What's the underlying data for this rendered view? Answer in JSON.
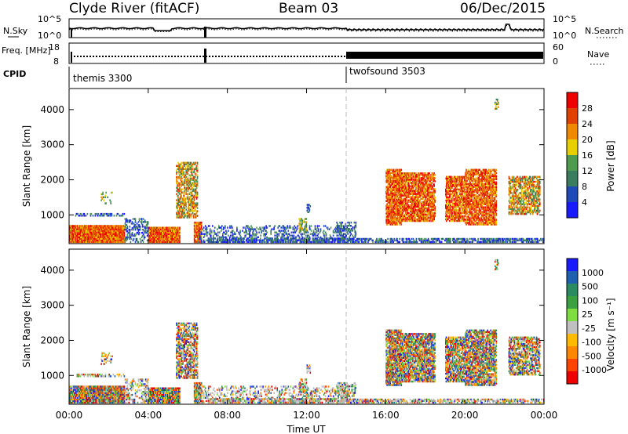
{
  "header": {
    "station": "Clyde River (fitACF)",
    "beam": "Beam 03",
    "date": "06/Dec/2015"
  },
  "colors": {
    "power_scale": [
      "#1a1aff",
      "#1f4bb8",
      "#3a7d5e",
      "#4e9a4e",
      "#e8d000",
      "#f08800",
      "#e04000",
      "#ee0000"
    ],
    "velocity_scale": [
      "#ee0000",
      "#ff4400",
      "#ff8800",
      "#ffbb00",
      "#c0c0c0",
      "#80dd40",
      "#3aa040",
      "#2a8a60",
      "#1f5fb0",
      "#1a1aff"
    ],
    "ground_scatter": "#a0a0a0"
  },
  "chart_data": [
    {
      "type": "line",
      "panel": "noise",
      "left_label": "N.Sky",
      "right_label": "N.Search",
      "left_ticks": [
        "10^5",
        "10^0"
      ],
      "right_ticks": [
        "10^5",
        "10^0"
      ],
      "y_scale": "log",
      "ylim": [
        1,
        100000
      ],
      "x": [
        "00:00",
        "04:00",
        "08:00",
        "12:00",
        "16:00",
        "20:00",
        "00:00"
      ]
    },
    {
      "type": "line",
      "panel": "frequency",
      "left_label": "Freq. [MHz]",
      "right_label": "Nave",
      "left_ticks": [
        "18",
        "8"
      ],
      "right_ticks": [
        "60",
        "0"
      ],
      "ylim": [
        8,
        18
      ],
      "ylim_right": [
        0,
        60
      ]
    },
    {
      "type": "table",
      "panel": "cpid",
      "label": "CPID",
      "segments": [
        {
          "name": "themis 3300",
          "start_hour": 0,
          "end_hour": 14
        },
        {
          "name": "twofsound 3503",
          "start_hour": 14,
          "end_hour": 24
        }
      ]
    },
    {
      "type": "heatmap",
      "panel": "power",
      "ylabel": "Slant Range [km]",
      "xlabel": "",
      "y_ticks": [
        1000,
        2000,
        3000,
        4000
      ],
      "ylim": [
        180,
        4600
      ],
      "xlim_hours": [
        0,
        24
      ],
      "colorbar": {
        "label": "Power [dB]",
        "ticks": [
          "28",
          "24",
          "20",
          "16",
          "12",
          "8",
          "4"
        ],
        "range": [
          0,
          32
        ]
      }
    },
    {
      "type": "heatmap",
      "panel": "velocity",
      "ylabel": "Slant Range [km]",
      "xlabel": "Time UT",
      "x_ticks": [
        "00:00",
        "04:00",
        "08:00",
        "12:00",
        "16:00",
        "20:00",
        "00:00"
      ],
      "y_ticks": [
        1000,
        2000,
        3000,
        4000
      ],
      "ylim": [
        180,
        4600
      ],
      "xlim_hours": [
        0,
        24
      ],
      "colorbar": {
        "label": "Velocity [m s⁻¹]",
        "ticks": [
          "1000",
          "500",
          "100",
          "25",
          "-25",
          "-100",
          "-500",
          "-1000"
        ],
        "range": [
          -1200,
          1200
        ]
      }
    }
  ]
}
